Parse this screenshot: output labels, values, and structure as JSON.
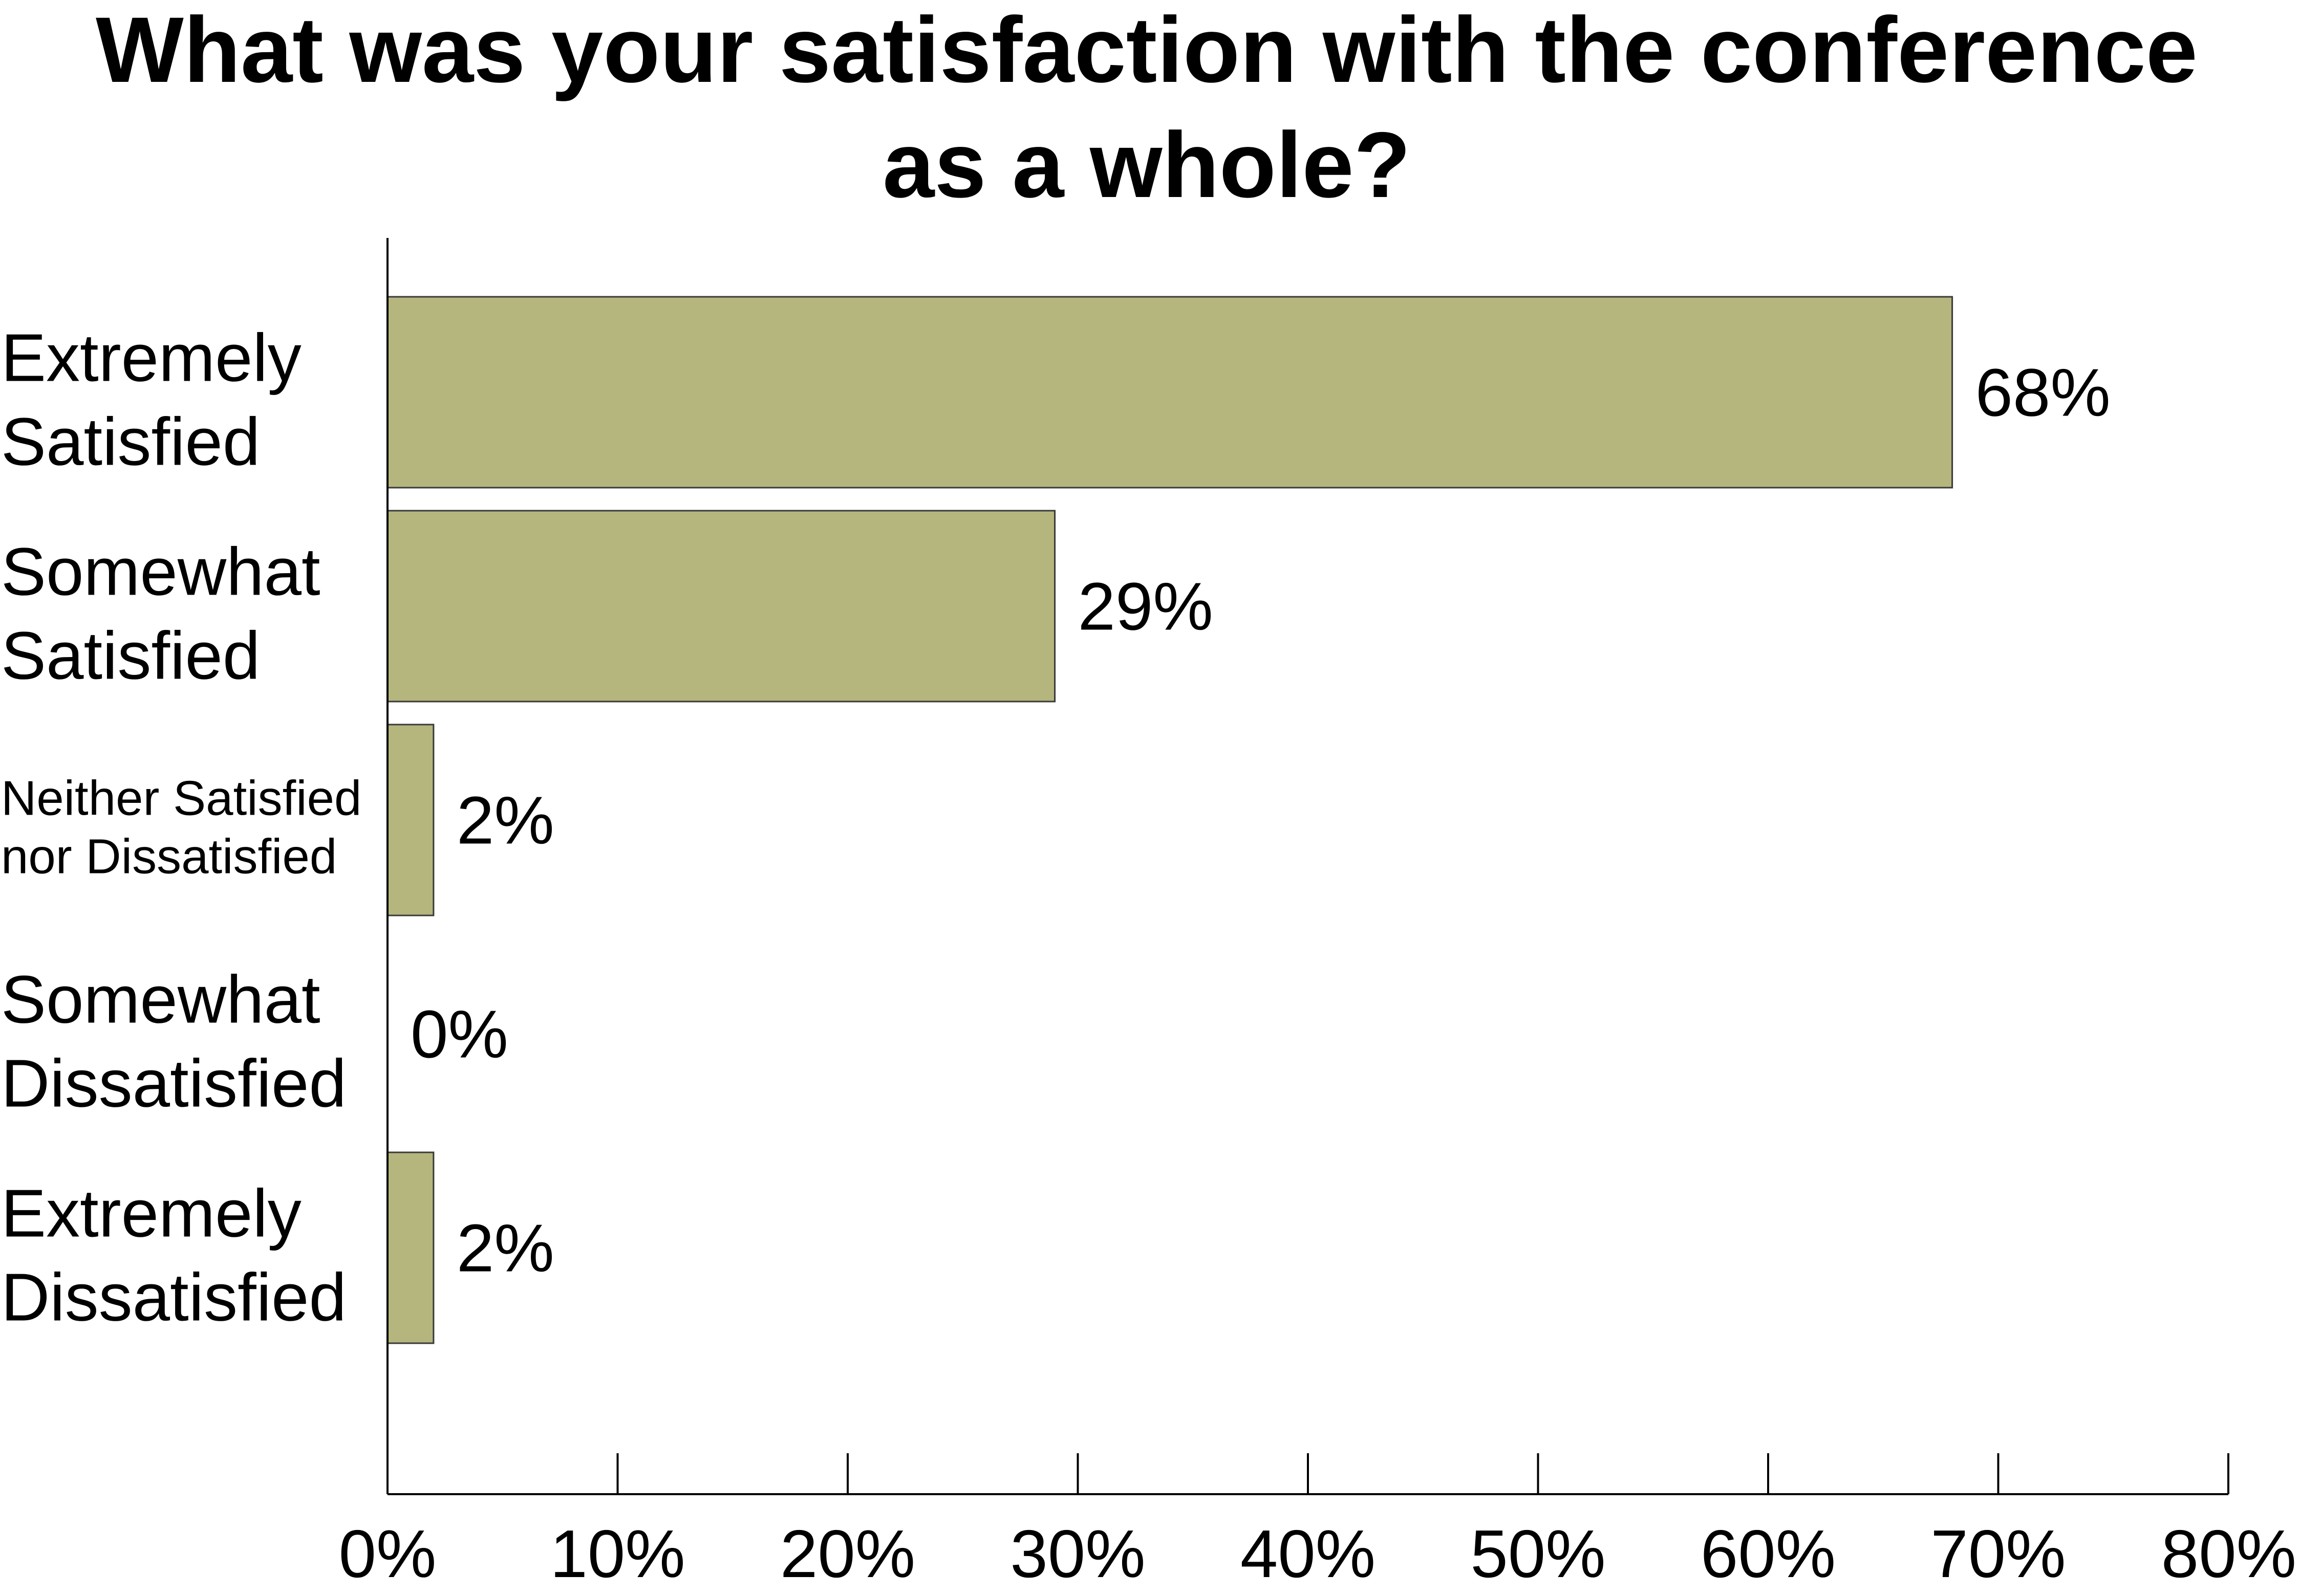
{
  "chart_data": {
    "type": "bar",
    "orientation": "horizontal",
    "title_lines": [
      "What was your satisfaction with the conference",
      "as a whole?"
    ],
    "categories": [
      [
        "Extremely",
        "Satisfied"
      ],
      [
        "Somewhat",
        "Satisfied"
      ],
      [
        "Neither Satisfied",
        "nor Dissatisfied"
      ],
      [
        "Somewhat",
        "Dissatisfied"
      ],
      [
        "Extremely",
        "Dissatisfied"
      ]
    ],
    "values": [
      68,
      29,
      2,
      0,
      2
    ],
    "value_labels": [
      "68%",
      "29%",
      "2%",
      "0%",
      "2%"
    ],
    "xlim": [
      0,
      80
    ],
    "xticks": [
      0,
      10,
      20,
      30,
      40,
      50,
      60,
      70,
      80
    ],
    "xtick_labels": [
      "0%",
      "10%",
      "20%",
      "30%",
      "40%",
      "50%",
      "60%",
      "70%",
      "80%"
    ],
    "xlabel": "",
    "ylabel": "",
    "grid": false,
    "legend": "none",
    "bar_color": "#b5b57e",
    "bar_edge_color": "#3a3a3a"
  }
}
